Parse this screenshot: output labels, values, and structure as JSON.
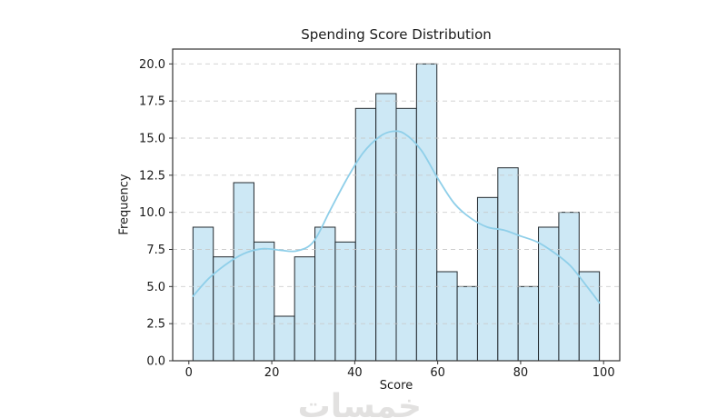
{
  "chart_data": {
    "type": "histogram",
    "title": "Spending Score Distribution",
    "xlabel": "Score",
    "ylabel": "Frequency",
    "bin_start": 1,
    "bin_width": 4.9,
    "counts": [
      9,
      7,
      12,
      8,
      3,
      7,
      9,
      8,
      17,
      18,
      17,
      20,
      6,
      5,
      11,
      13,
      5,
      9,
      10,
      6
    ],
    "total_count": 200,
    "kde": {
      "x": [
        1,
        5,
        10,
        14,
        18,
        22,
        26,
        30,
        34,
        38,
        42,
        46,
        49,
        52,
        56,
        60,
        64,
        68,
        72,
        76,
        80,
        84,
        88,
        92,
        96,
        99
      ],
      "y": [
        4.35,
        5.6,
        6.7,
        7.3,
        7.55,
        7.45,
        7.4,
        8.0,
        10.1,
        12.2,
        14.0,
        15.1,
        15.45,
        15.3,
        14.2,
        12.3,
        10.6,
        9.6,
        9.0,
        8.8,
        8.4,
        8.0,
        7.3,
        6.4,
        5.0,
        3.9
      ]
    },
    "xticks": {
      "values": [
        0,
        20,
        40,
        60,
        80,
        100
      ],
      "labels": [
        "0",
        "20",
        "40",
        "60",
        "80",
        "100"
      ]
    },
    "yticks": {
      "values": [
        0,
        2.5,
        5,
        7.5,
        10,
        12.5,
        15,
        17.5,
        20
      ],
      "labels": [
        "0.0",
        "2.5",
        "5.0",
        "7.5",
        "10.0",
        "12.5",
        "15.0",
        "17.5",
        "20.0"
      ]
    },
    "xlim": [
      -3.9,
      103.9
    ],
    "ylim": [
      0,
      21
    ],
    "grid": {
      "axis": "y",
      "style": "dashed"
    },
    "legend": "none",
    "colors": {
      "bar_fill": "#cde8f5",
      "bar_edge": "#22292e",
      "kde_line": "#8fcfe9",
      "grid": "#c6c6c6",
      "spine": "#333333",
      "tick_text": "#1a1a1a"
    }
  },
  "watermark": {
    "text": "خمسات",
    "color": "#e2e1e0"
  }
}
